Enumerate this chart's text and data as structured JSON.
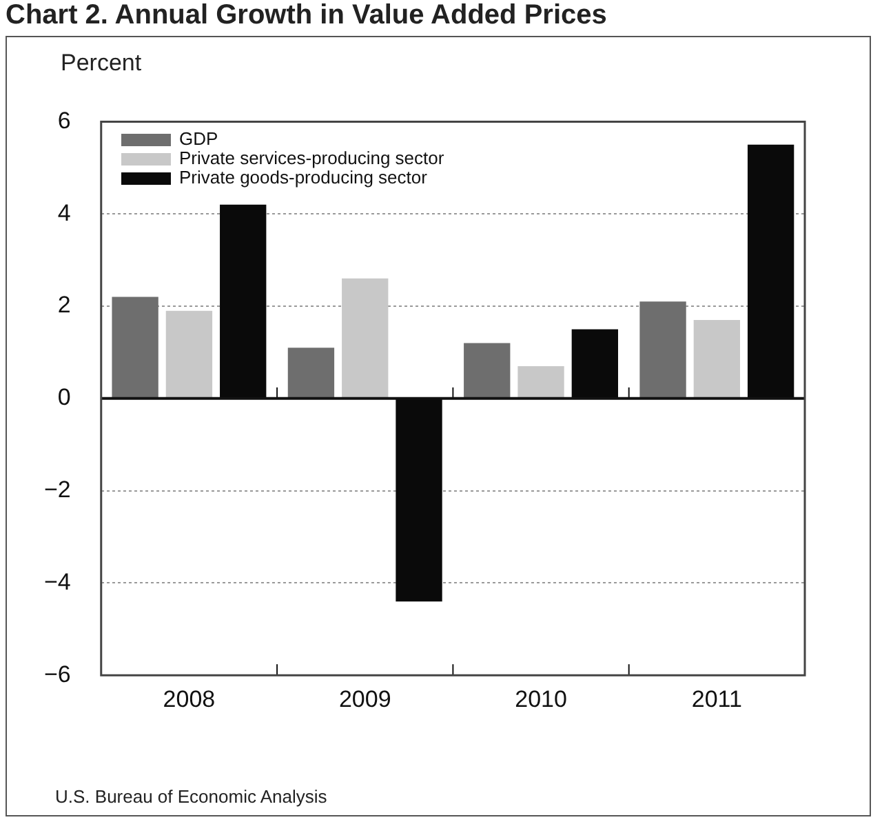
{
  "chart_data": {
    "type": "bar",
    "title": "Chart 2. Annual Growth in Value Added Prices",
    "ylabel": "Percent",
    "categories": [
      "2008",
      "2009",
      "2010",
      "2011"
    ],
    "series": [
      {
        "name": "GDP",
        "color": "#6e6e6e",
        "values": [
          2.2,
          1.1,
          1.2,
          2.1
        ]
      },
      {
        "name": "Private services-producing sector",
        "color": "#c8c8c8",
        "values": [
          1.9,
          2.6,
          0.7,
          1.7
        ]
      },
      {
        "name": "Private goods-producing sector",
        "color": "#0a0a0a",
        "values": [
          4.2,
          -4.4,
          1.5,
          5.5
        ]
      }
    ],
    "ylim": [
      -6,
      6
    ],
    "yticks": [
      -6,
      -4,
      -2,
      0,
      2,
      4,
      6
    ],
    "grid": "y",
    "legend": "top left",
    "annotations": [
      "U.S. Bureau of Economic Analysis"
    ]
  }
}
